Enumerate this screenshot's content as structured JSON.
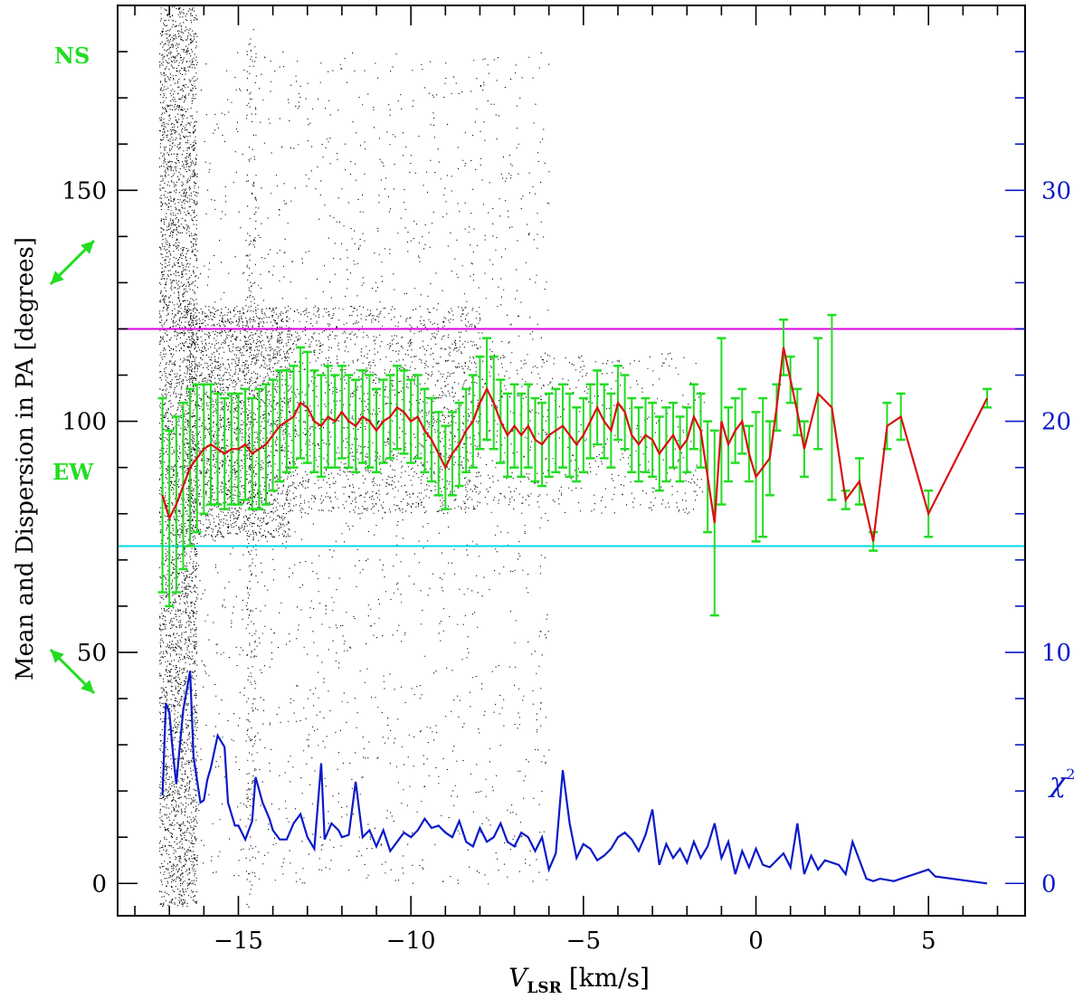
{
  "chart_data": {
    "type": "line",
    "title": "",
    "xlabel_main": "V",
    "xlabel_sub": "LSR",
    "xlabel_unit": "[km/s]",
    "ylabel_left": "Mean and Dispersion in PA [degrees]",
    "ylabel_right_symbol": "χ",
    "ylabel_right_exp": "2",
    "xlim": [
      -18.5,
      7.8
    ],
    "ylim_left": [
      -7,
      190
    ],
    "ylim_right": [
      -1.4,
      38
    ],
    "x_ticks": [
      -15,
      -10,
      -5,
      0,
      5
    ],
    "x_tick_labels": [
      "−15",
      "−10",
      "−5",
      "0",
      "5"
    ],
    "y_left_ticks": [
      0,
      50,
      100,
      150
    ],
    "y_left_tick_labels": [
      "0",
      "50",
      "100",
      "150"
    ],
    "y_right_ticks": [
      0,
      10,
      20,
      30
    ],
    "y_right_tick_labels": [
      "0",
      "10",
      "20",
      "30"
    ],
    "annotations": {
      "ns_label": "NS",
      "ew_label": "EW",
      "ns_arrow_angle_deg": 45,
      "ew_arrow_angle_deg": 135
    },
    "reference_lines": [
      {
        "name": "magenta-line",
        "y": 120,
        "color": "#e000e0"
      },
      {
        "name": "cyan-line",
        "y": 73,
        "color": "#00d8e8"
      }
    ],
    "colors": {
      "mean": "#d81010",
      "errorbars": "#22dd22",
      "chi2": "#0a1ac8",
      "scatter": "#000000",
      "right_axis": "#0a1ac8",
      "annotation": "#22dd22"
    },
    "scatter_bands": [
      {
        "xmin": -17.3,
        "xmax": -16.2,
        "ymin": -5,
        "ymax": 190,
        "density": 1.0
      },
      {
        "xmin": -16.5,
        "xmax": -13.5,
        "ymin": 75,
        "ymax": 125,
        "density": 0.9
      },
      {
        "xmin": -13.5,
        "xmax": -8.0,
        "ymin": 80,
        "ymax": 125,
        "density": 0.35
      },
      {
        "xmin": -14.8,
        "xmax": -14.5,
        "ymin": -5,
        "ymax": 185,
        "density": 0.3
      },
      {
        "xmin": -8.5,
        "xmax": -1.5,
        "ymin": 80,
        "ymax": 115,
        "density": 0.12
      },
      {
        "xmin": -17.0,
        "xmax": -6.0,
        "ymin": 0,
        "ymax": 180,
        "density": 0.06
      }
    ],
    "series": [
      {
        "name": "Mean PA",
        "axis": "left",
        "x": [
          -17.2,
          -17.0,
          -16.8,
          -16.6,
          -16.4,
          -16.2,
          -16.0,
          -15.8,
          -15.6,
          -15.4,
          -15.2,
          -15.0,
          -14.8,
          -14.6,
          -14.4,
          -14.2,
          -14.0,
          -13.8,
          -13.6,
          -13.4,
          -13.2,
          -13.0,
          -12.8,
          -12.6,
          -12.4,
          -12.2,
          -12.0,
          -11.8,
          -11.6,
          -11.4,
          -11.2,
          -11.0,
          -10.8,
          -10.6,
          -10.4,
          -10.2,
          -10.0,
          -9.8,
          -9.6,
          -9.4,
          -9.2,
          -9.0,
          -8.8,
          -8.6,
          -8.4,
          -8.2,
          -8.0,
          -7.8,
          -7.6,
          -7.4,
          -7.2,
          -7.0,
          -6.8,
          -6.6,
          -6.4,
          -6.2,
          -6.0,
          -5.8,
          -5.6,
          -5.4,
          -5.2,
          -5.0,
          -4.8,
          -4.6,
          -4.4,
          -4.2,
          -4.0,
          -3.8,
          -3.6,
          -3.4,
          -3.2,
          -3.0,
          -2.8,
          -2.6,
          -2.4,
          -2.2,
          -2.0,
          -1.8,
          -1.6,
          -1.4,
          -1.2,
          -1.0,
          -0.8,
          -0.6,
          -0.4,
          -0.2,
          0.0,
          0.2,
          0.4,
          0.6,
          0.8,
          1.0,
          1.2,
          1.4,
          1.8,
          2.2,
          2.6,
          3.0,
          3.4,
          3.8,
          4.2,
          5.0,
          6.7
        ],
        "y": [
          84,
          79,
          82,
          86,
          90,
          92,
          94,
          95,
          94,
          93,
          94,
          94,
          95,
          93,
          94,
          95,
          97,
          99,
          100,
          101,
          104,
          103,
          100,
          99,
          101,
          100,
          102,
          100,
          99,
          101,
          100,
          98,
          100,
          101,
          103,
          102,
          100,
          101,
          98,
          96,
          93,
          90,
          93,
          95,
          98,
          100,
          104,
          107,
          104,
          100,
          97,
          99,
          97,
          99,
          96,
          95,
          97,
          98,
          99,
          97,
          95,
          97,
          100,
          103,
          100,
          98,
          104,
          102,
          97,
          95,
          97,
          96,
          93,
          95,
          97,
          94,
          96,
          101,
          98,
          88,
          78,
          100,
          95,
          98,
          100,
          93,
          88,
          90,
          92,
          103,
          116,
          109,
          102,
          94,
          106,
          103,
          83,
          87,
          74,
          99,
          101,
          80,
          105
        ],
        "err": [
          21,
          19,
          19,
          18,
          17,
          16,
          14,
          13,
          12,
          12,
          12,
          12,
          12,
          12,
          13,
          13,
          12,
          12,
          11,
          11,
          12,
          12,
          11,
          11,
          11,
          10,
          10,
          10,
          10,
          10,
          10,
          9,
          9,
          9,
          9,
          9,
          9,
          9,
          9,
          9,
          9,
          9,
          9,
          9,
          9,
          10,
          10,
          11,
          10,
          9,
          9,
          9,
          9,
          9,
          9,
          9,
          9,
          9,
          9,
          9,
          8,
          8,
          8,
          8,
          8,
          8,
          8,
          8,
          8,
          8,
          8,
          8,
          8,
          8,
          7,
          7,
          7,
          7,
          8,
          12,
          20,
          18,
          8,
          7,
          7,
          6,
          14,
          15,
          8,
          5,
          6,
          5,
          5,
          6,
          12,
          20,
          2,
          5,
          2,
          5,
          5,
          5,
          2
        ]
      },
      {
        "name": "chi2",
        "axis": "right",
        "x": [
          -17.2,
          -17.1,
          -17.0,
          -16.9,
          -16.8,
          -16.6,
          -16.4,
          -16.3,
          -16.1,
          -16.0,
          -15.9,
          -15.8,
          -15.6,
          -15.4,
          -15.3,
          -15.1,
          -15.0,
          -14.8,
          -14.6,
          -14.5,
          -14.3,
          -14.1,
          -14.0,
          -13.8,
          -13.6,
          -13.4,
          -13.2,
          -13.0,
          -12.8,
          -12.6,
          -12.5,
          -12.3,
          -12.1,
          -12.0,
          -11.8,
          -11.6,
          -11.4,
          -11.2,
          -11.0,
          -10.8,
          -10.6,
          -10.4,
          -10.2,
          -10.0,
          -9.8,
          -9.6,
          -9.4,
          -9.2,
          -9.0,
          -8.8,
          -8.6,
          -8.4,
          -8.2,
          -8.0,
          -7.8,
          -7.6,
          -7.4,
          -7.2,
          -7.0,
          -6.8,
          -6.6,
          -6.4,
          -6.2,
          -6.0,
          -5.8,
          -5.6,
          -5.4,
          -5.2,
          -5.0,
          -4.8,
          -4.6,
          -4.4,
          -4.2,
          -4.0,
          -3.8,
          -3.6,
          -3.4,
          -3.2,
          -3.0,
          -2.8,
          -2.6,
          -2.4,
          -2.2,
          -2.0,
          -1.8,
          -1.6,
          -1.4,
          -1.2,
          -1.0,
          -0.8,
          -0.6,
          -0.4,
          -0.2,
          0.0,
          0.2,
          0.4,
          0.6,
          0.8,
          1.0,
          1.2,
          1.4,
          1.6,
          1.8,
          2.0,
          2.4,
          2.6,
          2.8,
          3.2,
          3.4,
          3.6,
          4.0,
          4.2,
          5.0,
          5.2,
          6.7
        ],
        "y": [
          3.8,
          7.8,
          7.4,
          5.7,
          4.3,
          7.5,
          9.2,
          5.5,
          3.5,
          3.6,
          4.5,
          5.0,
          6.4,
          5.9,
          3.5,
          2.5,
          2.5,
          1.9,
          2.7,
          4.6,
          3.5,
          2.8,
          2.3,
          1.9,
          1.9,
          2.6,
          3.0,
          2.0,
          1.5,
          5.2,
          1.9,
          2.6,
          2.3,
          2.0,
          2.1,
          4.4,
          2.0,
          2.3,
          1.6,
          2.3,
          1.4,
          1.8,
          2.2,
          2.0,
          2.3,
          2.8,
          2.4,
          2.5,
          2.2,
          2.0,
          2.7,
          1.8,
          1.6,
          2.4,
          1.8,
          2.0,
          2.6,
          1.8,
          1.6,
          2.2,
          2.0,
          1.4,
          2.0,
          0.6,
          1.3,
          4.9,
          2.6,
          1.1,
          1.7,
          1.5,
          1.0,
          1.2,
          1.5,
          2.0,
          2.2,
          1.9,
          1.4,
          2.1,
          3.2,
          0.8,
          1.7,
          1.1,
          1.5,
          0.9,
          1.8,
          1.1,
          1.6,
          2.6,
          1.1,
          1.8,
          0.4,
          1.4,
          0.7,
          1.5,
          0.8,
          0.7,
          1.0,
          1.3,
          0.7,
          2.6,
          0.4,
          1.2,
          0.6,
          1.0,
          0.8,
          0.4,
          1.8,
          0.2,
          0.1,
          0.2,
          0.1,
          0.2,
          0.6,
          0.3,
          0.0
        ]
      }
    ]
  }
}
